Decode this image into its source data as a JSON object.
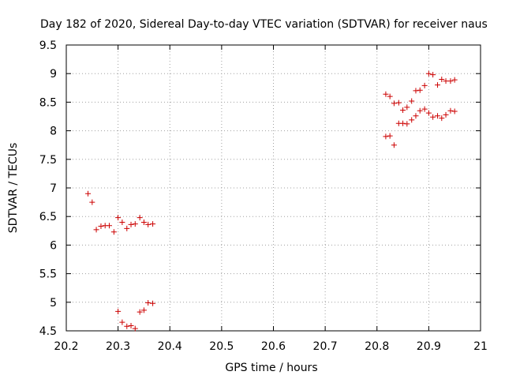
{
  "chart_data": {
    "type": "scatter",
    "title": "Day 182 of 2020, Sidereal Day-to-day VTEC variation (SDTVAR) for receiver naus",
    "xlabel": "GPS time / hours",
    "ylabel": "SDTVAR / TECUs",
    "xlim": [
      20.2,
      21
    ],
    "ylim": [
      4.5,
      9.5
    ],
    "xticks": [
      20.2,
      20.3,
      20.4,
      20.5,
      20.6,
      20.7,
      20.8,
      20.9,
      21
    ],
    "xtick_labels": [
      "20.2",
      "20.3",
      "20.4",
      "20.5",
      "20.6",
      "20.7",
      "20.8",
      "20.9",
      "21"
    ],
    "yticks": [
      4.5,
      5,
      5.5,
      6,
      6.5,
      7,
      7.5,
      8,
      8.5,
      9,
      9.5
    ],
    "ytick_labels": [
      "4.5",
      "5",
      "5.5",
      "6",
      "6.5",
      "7",
      "7.5",
      "8",
      "8.5",
      "9",
      "9.5"
    ],
    "marker": "+",
    "color": "#cc0000",
    "series": [
      {
        "name": "SDTVAR",
        "points": [
          [
            20.242,
            6.9
          ],
          [
            20.25,
            6.75
          ],
          [
            20.258,
            6.27
          ],
          [
            20.267,
            6.33
          ],
          [
            20.275,
            6.34
          ],
          [
            20.283,
            6.34
          ],
          [
            20.292,
            6.23
          ],
          [
            20.3,
            6.48
          ],
          [
            20.308,
            6.4
          ],
          [
            20.317,
            6.29
          ],
          [
            20.325,
            6.36
          ],
          [
            20.333,
            6.37
          ],
          [
            20.342,
            6.48
          ],
          [
            20.35,
            6.4
          ],
          [
            20.358,
            6.36
          ],
          [
            20.367,
            6.37
          ],
          [
            20.3,
            4.84
          ],
          [
            20.308,
            4.65
          ],
          [
            20.317,
            4.58
          ],
          [
            20.325,
            4.59
          ],
          [
            20.333,
            4.54
          ],
          [
            20.342,
            4.83
          ],
          [
            20.35,
            4.86
          ],
          [
            20.358,
            4.99
          ],
          [
            20.367,
            4.98
          ],
          [
            20.817,
            8.64
          ],
          [
            20.825,
            8.6
          ],
          [
            20.833,
            8.48
          ],
          [
            20.842,
            8.49
          ],
          [
            20.85,
            8.36
          ],
          [
            20.858,
            8.41
          ],
          [
            20.867,
            8.52
          ],
          [
            20.875,
            8.7
          ],
          [
            20.883,
            8.71
          ],
          [
            20.892,
            8.79
          ],
          [
            20.9,
            9.0
          ],
          [
            20.908,
            8.98
          ],
          [
            20.917,
            8.8
          ],
          [
            20.925,
            8.9
          ],
          [
            20.933,
            8.87
          ],
          [
            20.942,
            8.87
          ],
          [
            20.95,
            8.89
          ],
          [
            20.817,
            7.9
          ],
          [
            20.825,
            7.91
          ],
          [
            20.833,
            7.75
          ],
          [
            20.842,
            8.13
          ],
          [
            20.85,
            8.13
          ],
          [
            20.858,
            8.12
          ],
          [
            20.867,
            8.19
          ],
          [
            20.875,
            8.26
          ],
          [
            20.883,
            8.35
          ],
          [
            20.892,
            8.38
          ],
          [
            20.9,
            8.31
          ],
          [
            20.908,
            8.24
          ],
          [
            20.917,
            8.26
          ],
          [
            20.925,
            8.22
          ],
          [
            20.933,
            8.28
          ],
          [
            20.942,
            8.35
          ],
          [
            20.95,
            8.34
          ]
        ]
      }
    ]
  }
}
